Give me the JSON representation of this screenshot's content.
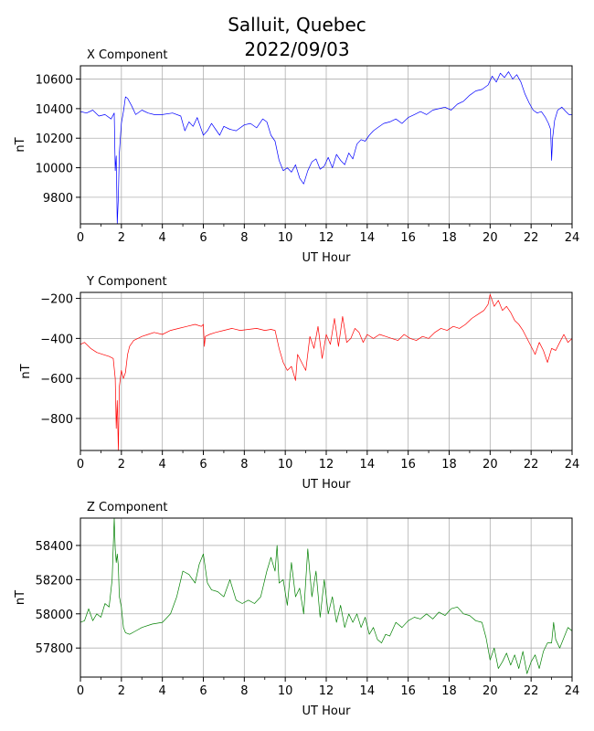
{
  "figure": {
    "title_line1": "Salluit, Quebec",
    "title_line2": "2022/09/03"
  },
  "chart_data": [
    {
      "type": "line",
      "title": "X Component",
      "xlabel": "UT Hour",
      "ylabel": "nT",
      "xlim": [
        0,
        24
      ],
      "ylim": [
        9620,
        10690
      ],
      "xticks": [
        0,
        2,
        4,
        6,
        8,
        10,
        12,
        14,
        16,
        18,
        20,
        22,
        24
      ],
      "yticks": [
        9800,
        10000,
        10200,
        10400,
        10600
      ],
      "grid": true,
      "color": "#0000ff",
      "series": [
        {
          "x": [
            0,
            0.3,
            0.6,
            0.9,
            1.2,
            1.5,
            1.65,
            1.7,
            1.75,
            1.8,
            1.85,
            1.9,
            2.0,
            2.1,
            2.2,
            2.3,
            2.5,
            2.7,
            3.0,
            3.3,
            3.6,
            4.0,
            4.5,
            4.9,
            5.1,
            5.3,
            5.5,
            5.7,
            6.0,
            6.2,
            6.4,
            6.6,
            6.8,
            7.0,
            7.3,
            7.6,
            8.0,
            8.3,
            8.6,
            8.9,
            9.1,
            9.3,
            9.5,
            9.7,
            9.9,
            10.1,
            10.3,
            10.5,
            10.7,
            10.9,
            11.1,
            11.3,
            11.5,
            11.7,
            11.9,
            12.1,
            12.3,
            12.5,
            12.7,
            12.9,
            13.1,
            13.3,
            13.5,
            13.7,
            13.9,
            14.1,
            14.3,
            14.5,
            14.8,
            15.1,
            15.4,
            15.7,
            16.0,
            16.3,
            16.6,
            16.9,
            17.2,
            17.5,
            17.8,
            18.1,
            18.4,
            18.7,
            19.0,
            19.3,
            19.6,
            19.9,
            20.1,
            20.3,
            20.5,
            20.7,
            20.9,
            21.1,
            21.3,
            21.5,
            21.7,
            21.9,
            22.1,
            22.3,
            22.5,
            22.7,
            22.85,
            22.95,
            23.0,
            23.05,
            23.15,
            23.3,
            23.5,
            23.7,
            23.85,
            24.0
          ],
          "y": [
            10380,
            10370,
            10390,
            10350,
            10360,
            10330,
            10370,
            9980,
            10080,
            9620,
            9800,
            10100,
            10300,
            10380,
            10480,
            10470,
            10420,
            10360,
            10390,
            10370,
            10360,
            10360,
            10370,
            10350,
            10250,
            10310,
            10280,
            10340,
            10220,
            10250,
            10300,
            10260,
            10220,
            10280,
            10260,
            10250,
            10290,
            10300,
            10270,
            10330,
            10310,
            10220,
            10180,
            10050,
            9980,
            10000,
            9970,
            10020,
            9930,
            9890,
            9980,
            10040,
            10060,
            9990,
            10010,
            10070,
            10000,
            10090,
            10050,
            10020,
            10100,
            10060,
            10160,
            10190,
            10180,
            10220,
            10250,
            10270,
            10300,
            10310,
            10330,
            10300,
            10340,
            10360,
            10380,
            10360,
            10390,
            10400,
            10410,
            10390,
            10430,
            10450,
            10490,
            10520,
            10530,
            10560,
            10620,
            10580,
            10640,
            10610,
            10650,
            10600,
            10630,
            10580,
            10500,
            10440,
            10390,
            10370,
            10380,
            10340,
            10300,
            10260,
            10050,
            10200,
            10320,
            10390,
            10410,
            10380,
            10360,
            10360
          ]
        }
      ]
    },
    {
      "type": "line",
      "title": "Y Component",
      "xlabel": "UT Hour",
      "ylabel": "nT",
      "xlim": [
        0,
        24
      ],
      "ylim": [
        -960,
        -170
      ],
      "xticks": [
        0,
        2,
        4,
        6,
        8,
        10,
        12,
        14,
        16,
        18,
        20,
        22,
        24
      ],
      "yticks": [
        -800,
        -600,
        -400,
        -200
      ],
      "grid": true,
      "color": "#ff0000",
      "series": [
        {
          "x": [
            0,
            0.2,
            0.5,
            0.8,
            1.1,
            1.4,
            1.6,
            1.7,
            1.75,
            1.8,
            1.85,
            1.9,
            2.0,
            2.1,
            2.2,
            2.3,
            2.4,
            2.6,
            2.8,
            3.0,
            3.3,
            3.6,
            4.0,
            4.4,
            4.8,
            5.2,
            5.6,
            5.9,
            6.0,
            6.05,
            6.1,
            6.3,
            6.6,
            7.0,
            7.4,
            7.8,
            8.2,
            8.6,
            9.0,
            9.3,
            9.5,
            9.7,
            9.9,
            10.1,
            10.3,
            10.5,
            10.6,
            10.8,
            11.0,
            11.2,
            11.4,
            11.6,
            11.8,
            12.0,
            12.2,
            12.4,
            12.6,
            12.8,
            13.0,
            13.2,
            13.4,
            13.6,
            13.8,
            14.0,
            14.3,
            14.6,
            14.9,
            15.2,
            15.5,
            15.8,
            16.1,
            16.4,
            16.7,
            17.0,
            17.3,
            17.6,
            17.9,
            18.2,
            18.5,
            18.8,
            19.1,
            19.4,
            19.7,
            19.9,
            20.0,
            20.2,
            20.4,
            20.6,
            20.8,
            21.0,
            21.2,
            21.4,
            21.6,
            21.8,
            22.0,
            22.2,
            22.4,
            22.6,
            22.8,
            23.0,
            23.2,
            23.4,
            23.6,
            23.8,
            24.0
          ],
          "y": [
            -430,
            -420,
            -450,
            -470,
            -480,
            -490,
            -500,
            -600,
            -850,
            -710,
            -960,
            -640,
            -560,
            -600,
            -570,
            -480,
            -440,
            -410,
            -400,
            -390,
            -380,
            -370,
            -380,
            -360,
            -350,
            -340,
            -330,
            -340,
            -330,
            -440,
            -390,
            -380,
            -370,
            -360,
            -350,
            -360,
            -355,
            -350,
            -360,
            -355,
            -360,
            -450,
            -520,
            -560,
            -540,
            -610,
            -480,
            -520,
            -560,
            -390,
            -450,
            -340,
            -500,
            -380,
            -430,
            -300,
            -440,
            -290,
            -420,
            -400,
            -350,
            -370,
            -420,
            -380,
            -400,
            -380,
            -390,
            -400,
            -410,
            -380,
            -400,
            -410,
            -390,
            -400,
            -370,
            -350,
            -360,
            -340,
            -350,
            -330,
            -300,
            -280,
            -260,
            -230,
            -180,
            -240,
            -210,
            -260,
            -240,
            -270,
            -310,
            -330,
            -360,
            -400,
            -440,
            -480,
            -420,
            -460,
            -520,
            -450,
            -460,
            -420,
            -380,
            -420,
            -400
          ]
        }
      ]
    },
    {
      "type": "line",
      "title": "Z Component",
      "xlabel": "UT Hour",
      "ylabel": "nT",
      "xlim": [
        0,
        24
      ],
      "ylim": [
        57630,
        58560
      ],
      "xticks": [
        0,
        2,
        4,
        6,
        8,
        10,
        12,
        14,
        16,
        18,
        20,
        22,
        24
      ],
      "yticks": [
        57800,
        58000,
        58200,
        58400
      ],
      "grid": true,
      "color": "#008000",
      "series": [
        {
          "x": [
            0,
            0.2,
            0.4,
            0.6,
            0.8,
            1.0,
            1.2,
            1.4,
            1.55,
            1.65,
            1.7,
            1.75,
            1.8,
            1.85,
            1.9,
            2.0,
            2.1,
            2.2,
            2.4,
            2.7,
            3.0,
            3.5,
            4.0,
            4.4,
            4.7,
            5.0,
            5.3,
            5.6,
            5.8,
            6.0,
            6.2,
            6.4,
            6.7,
            7.0,
            7.3,
            7.6,
            7.9,
            8.2,
            8.5,
            8.8,
            9.1,
            9.3,
            9.5,
            9.6,
            9.7,
            9.9,
            10.1,
            10.3,
            10.5,
            10.7,
            10.9,
            11.1,
            11.3,
            11.5,
            11.7,
            11.9,
            12.1,
            12.3,
            12.5,
            12.7,
            12.9,
            13.1,
            13.3,
            13.5,
            13.7,
            13.9,
            14.1,
            14.3,
            14.5,
            14.7,
            14.9,
            15.1,
            15.4,
            15.7,
            16.0,
            16.3,
            16.6,
            16.9,
            17.2,
            17.5,
            17.8,
            18.1,
            18.4,
            18.7,
            19.0,
            19.3,
            19.6,
            19.8,
            20.0,
            20.2,
            20.4,
            20.6,
            20.8,
            21.0,
            21.2,
            21.4,
            21.6,
            21.8,
            22.0,
            22.2,
            22.4,
            22.6,
            22.8,
            23.0,
            23.1,
            23.2,
            23.4,
            23.6,
            23.8,
            24.0
          ],
          "y": [
            57950,
            57960,
            58030,
            57960,
            58000,
            57980,
            58060,
            58040,
            58200,
            58560,
            58380,
            58300,
            58350,
            58280,
            58100,
            58040,
            57920,
            57890,
            57880,
            57900,
            57920,
            57940,
            57950,
            58000,
            58100,
            58250,
            58230,
            58180,
            58290,
            58350,
            58180,
            58140,
            58130,
            58100,
            58200,
            58080,
            58060,
            58080,
            58060,
            58100,
            58250,
            58330,
            58250,
            58400,
            58180,
            58200,
            58050,
            58300,
            58100,
            58150,
            58000,
            58380,
            58100,
            58250,
            57980,
            58200,
            58000,
            58100,
            57950,
            58050,
            57920,
            58000,
            57950,
            58000,
            57920,
            57980,
            57880,
            57920,
            57850,
            57830,
            57880,
            57870,
            57950,
            57920,
            57960,
            57980,
            57970,
            58000,
            57970,
            58010,
            57990,
            58030,
            58040,
            58000,
            57990,
            57960,
            57950,
            57860,
            57730,
            57800,
            57680,
            57720,
            57770,
            57700,
            57760,
            57680,
            57780,
            57650,
            57720,
            57760,
            57680,
            57780,
            57830,
            57830,
            57950,
            57850,
            57800,
            57860,
            57920,
            57900
          ]
        }
      ]
    }
  ]
}
